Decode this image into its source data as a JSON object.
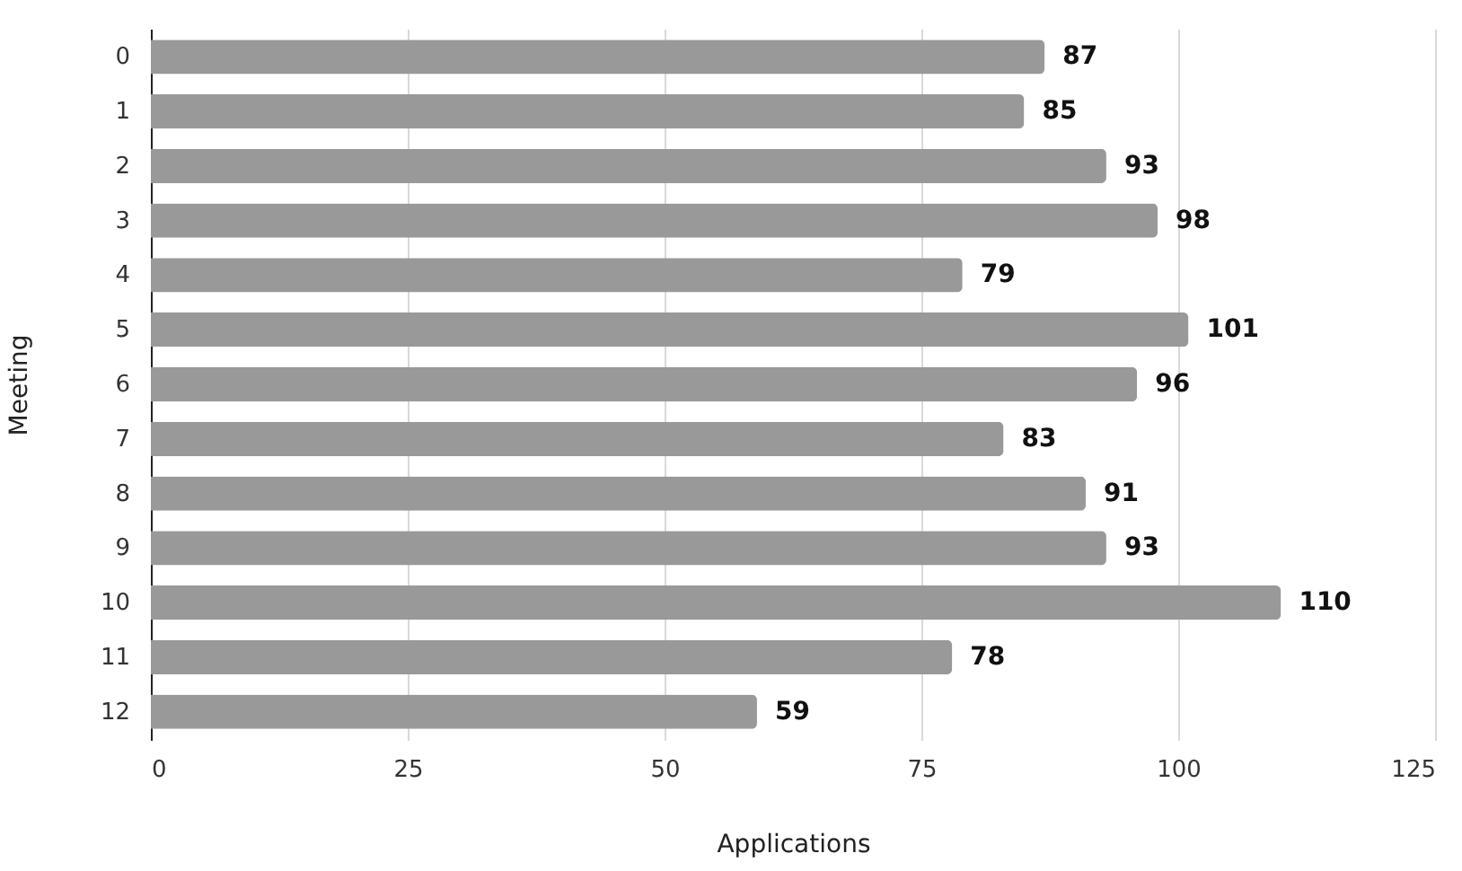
{
  "chart_data": {
    "type": "bar",
    "orientation": "horizontal",
    "xlabel": "Applications",
    "ylabel": "Meeting",
    "categories": [
      "0",
      "1",
      "2",
      "3",
      "4",
      "5",
      "6",
      "7",
      "8",
      "9",
      "10",
      "11",
      "12"
    ],
    "values": [
      87,
      85,
      93,
      98,
      79,
      101,
      96,
      83,
      91,
      93,
      110,
      78,
      59
    ],
    "color": "#999999",
    "xlim": [
      0,
      125
    ],
    "xticks": [
      0,
      25,
      50,
      75,
      100,
      125
    ],
    "grid": "x",
    "data_labels": true
  }
}
